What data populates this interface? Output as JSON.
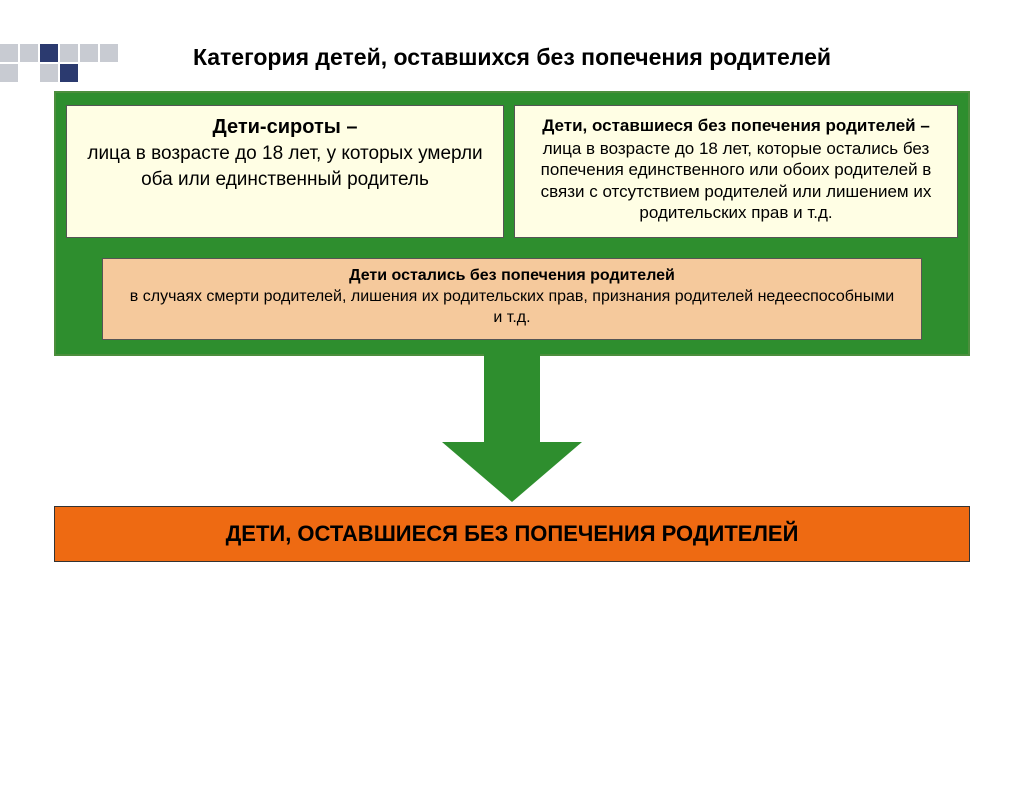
{
  "decoration": {
    "colors": [
      "#2b3a6f",
      "#c8cbd2",
      "#ffffff"
    ]
  },
  "title": "Категория детей, оставшихся без попечения родителей",
  "greenBox": {
    "bg": "#2e8e2e",
    "border": "#4c8e3d",
    "defBoxBg": "#fffee4",
    "midBoxBg": "#f5c99c"
  },
  "leftDef": {
    "heading": "Дети-сироты –",
    "body": "лица в возрасте до 18 лет, у которых умерли оба или единственный родитель"
  },
  "rightDef": {
    "heading": "Дети, оставшиеся без попечения родителей –",
    "body": "лица в возрасте до 18 лет, которые остались без попечения единственного или обоих родителей в связи с отсутствием родителей или лишением их родительских прав и т.д."
  },
  "middle": {
    "heading": "Дети остались без попечения родителей",
    "body": "в случаях смерти родителей, лишения их родительских прав, признания родителей недееспособными  и т.д."
  },
  "resultBanner": {
    "bg": "#ee6a12",
    "text": "ДЕТИ, ОСТАВШИЕСЯ БЕЗ ПОПЕЧЕНИЯ РОДИТЕЛЕЙ"
  }
}
